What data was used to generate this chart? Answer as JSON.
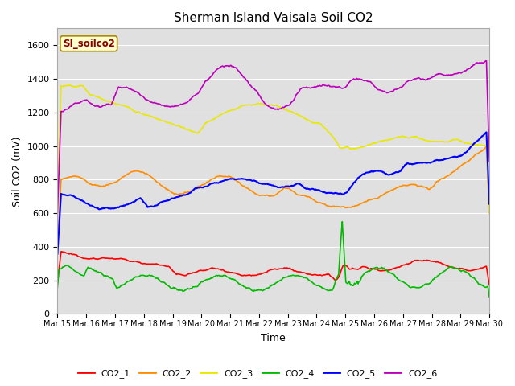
{
  "title": "Sherman Island Vaisala Soil CO2",
  "xlabel": "Time",
  "ylabel": "Soil CO2 (mV)",
  "legend_label": "SI_soilco2",
  "ylim": [
    0,
    1700
  ],
  "yticks": [
    0,
    200,
    400,
    600,
    800,
    1000,
    1200,
    1400,
    1600
  ],
  "x_labels": [
    "Mar 15",
    "Mar 16",
    "Mar 17",
    "Mar 18",
    "Mar 19",
    "Mar 20",
    "Mar 21",
    "Mar 22",
    "Mar 23",
    "Mar 24",
    "Mar 25",
    "Mar 26",
    "Mar 27",
    "Mar 28",
    "Mar 29",
    "Mar 30"
  ],
  "n_points": 600,
  "colors": {
    "CO2_1": "#ff0000",
    "CO2_2": "#ff8c00",
    "CO2_3": "#e8e800",
    "CO2_4": "#00bb00",
    "CO2_5": "#0000ff",
    "CO2_6": "#bb00bb"
  },
  "background_color": "#e0e0e0",
  "grid_color": "#ffffff",
  "legend_box_facecolor": "#ffffcc",
  "legend_box_edgecolor": "#aa8800",
  "legend_text_color": "#880000",
  "fig_bgcolor": "#ffffff"
}
